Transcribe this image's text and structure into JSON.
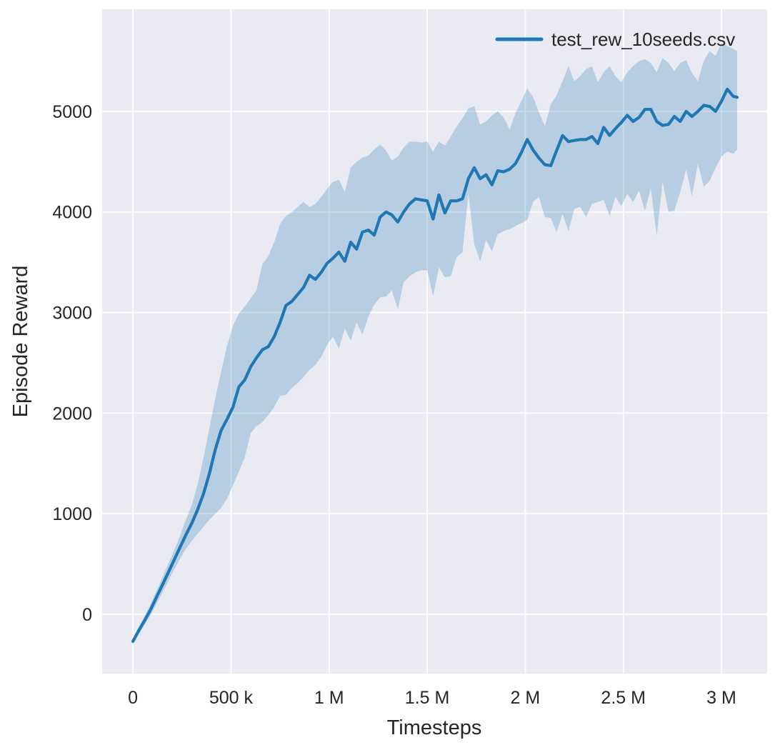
{
  "chart": {
    "xlabel": "Timesteps",
    "ylabel": "Episode Reward",
    "legend": {
      "label": "test_rew_10seeds.csv"
    },
    "colors": {
      "line": "#1f77b4",
      "band_fill": "#1f77b4",
      "band_opacity": 0.25,
      "axes_background": "#eaeaf2",
      "grid": "#ffffff",
      "text": "#262626",
      "figure_background": "#ffffff"
    },
    "x_ticks": [
      {
        "value": 0,
        "label": "0"
      },
      {
        "value": 500000,
        "label": "500 k"
      },
      {
        "value": 1000000,
        "label": "1 M"
      },
      {
        "value": 1500000,
        "label": "1.5 M"
      },
      {
        "value": 2000000,
        "label": "2 M"
      },
      {
        "value": 2500000,
        "label": "2.5 M"
      },
      {
        "value": 3000000,
        "label": "3 M"
      }
    ],
    "y_ticks": [
      {
        "value": 0,
        "label": "0"
      },
      {
        "value": 1000,
        "label": "1000"
      },
      {
        "value": 2000,
        "label": "2000"
      },
      {
        "value": 3000,
        "label": "3000"
      },
      {
        "value": 4000,
        "label": "4000"
      },
      {
        "value": 5000,
        "label": "5000"
      }
    ]
  },
  "chart_data": {
    "type": "line",
    "title": "",
    "xlabel": "Timesteps",
    "ylabel": "Episode Reward",
    "legend_position": "upper right",
    "grid": true,
    "band": "min-max / std envelope across 10 seeds",
    "xlim": [
      -157000,
      3233000
    ],
    "ylim": [
      -590,
      6015
    ],
    "series": [
      {
        "name": "test_rew_10seeds.csv",
        "x": [
          0,
          30000,
          60000,
          90000,
          120000,
          150000,
          180000,
          210000,
          240000,
          270000,
          300000,
          330000,
          360000,
          390000,
          420000,
          450000,
          480000,
          510000,
          540000,
          570000,
          600000,
          630000,
          660000,
          690000,
          720000,
          750000,
          780000,
          810000,
          840000,
          870000,
          900000,
          930000,
          960000,
          990000,
          1020000,
          1050000,
          1080000,
          1110000,
          1140000,
          1170000,
          1200000,
          1230000,
          1260000,
          1290000,
          1320000,
          1350000,
          1380000,
          1410000,
          1440000,
          1470000,
          1500000,
          1530000,
          1560000,
          1590000,
          1620000,
          1650000,
          1680000,
          1710000,
          1740000,
          1770000,
          1800000,
          1830000,
          1860000,
          1890000,
          1920000,
          1950000,
          1980000,
          2010000,
          2040000,
          2070000,
          2100000,
          2130000,
          2160000,
          2190000,
          2220000,
          2250000,
          2280000,
          2310000,
          2340000,
          2370000,
          2400000,
          2430000,
          2460000,
          2490000,
          2520000,
          2550000,
          2580000,
          2610000,
          2640000,
          2670000,
          2700000,
          2730000,
          2760000,
          2790000,
          2820000,
          2850000,
          2880000,
          2910000,
          2940000,
          2970000,
          3000000,
          3030000,
          3060000,
          3080000
        ],
        "mean": [
          -270,
          -160,
          -60,
          45,
          170,
          290,
          415,
          540,
          665,
          790,
          905,
          1040,
          1200,
          1400,
          1640,
          1830,
          1940,
          2060,
          2260,
          2330,
          2460,
          2550,
          2630,
          2660,
          2760,
          2900,
          3070,
          3110,
          3180,
          3250,
          3370,
          3330,
          3400,
          3490,
          3540,
          3600,
          3510,
          3700,
          3630,
          3800,
          3820,
          3770,
          3950,
          4000,
          3970,
          3900,
          4000,
          4080,
          4130,
          4120,
          4110,
          3930,
          4170,
          3990,
          4110,
          4110,
          4130,
          4330,
          4440,
          4330,
          4370,
          4270,
          4410,
          4400,
          4425,
          4480,
          4590,
          4720,
          4615,
          4535,
          4470,
          4460,
          4610,
          4760,
          4700,
          4710,
          4720,
          4720,
          4750,
          4680,
          4840,
          4760,
          4830,
          4890,
          4960,
          4900,
          4940,
          5020,
          5020,
          4900,
          4860,
          4870,
          4950,
          4900,
          5000,
          4950,
          5000,
          5060,
          5050,
          5000,
          5100,
          5220,
          5150,
          5140
        ],
        "lo": [
          -300,
          -195,
          -105,
          -10,
          105,
          215,
          330,
          445,
          550,
          650,
          730,
          800,
          870,
          940,
          1000,
          1060,
          1150,
          1280,
          1420,
          1560,
          1800,
          1870,
          1910,
          1980,
          2060,
          2170,
          2180,
          2250,
          2300,
          2360,
          2430,
          2480,
          2560,
          2680,
          2760,
          2640,
          2840,
          2720,
          2900,
          2780,
          2960,
          3080,
          3150,
          3160,
          3220,
          3030,
          3300,
          3360,
          3400,
          3420,
          3420,
          3160,
          3450,
          3350,
          3360,
          3550,
          3600,
          4180,
          3680,
          3510,
          3720,
          3610,
          3780,
          3810,
          3830,
          3860,
          3890,
          3920,
          4100,
          4150,
          3950,
          3940,
          3800,
          3980,
          3810,
          4030,
          4050,
          3950,
          4080,
          4100,
          4120,
          3960,
          4150,
          4060,
          4180,
          4100,
          4210,
          4010,
          4240,
          3760,
          4300,
          4000,
          4010,
          4200,
          4420,
          4160,
          4480,
          4250,
          4310,
          4440,
          4550,
          4600,
          4580,
          4620
        ],
        "hi": [
          -240,
          -125,
          -15,
          100,
          235,
          365,
          500,
          635,
          780,
          940,
          1090,
          1290,
          1560,
          1850,
          2150,
          2420,
          2670,
          2870,
          2990,
          3060,
          3140,
          3220,
          3480,
          3560,
          3700,
          3880,
          3960,
          4000,
          4050,
          4100,
          4050,
          4080,
          4150,
          4230,
          4300,
          4320,
          4200,
          4440,
          4500,
          4540,
          4560,
          4620,
          4670,
          4610,
          4510,
          4550,
          4640,
          4700,
          4700,
          4690,
          4700,
          4600,
          4700,
          4660,
          4750,
          4850,
          4930,
          5030,
          5050,
          4870,
          4900,
          4960,
          5000,
          4940,
          4820,
          4980,
          5100,
          5230,
          5140,
          4990,
          4850,
          5070,
          5160,
          5300,
          5450,
          5300,
          5350,
          5420,
          5450,
          5290,
          5390,
          5450,
          5350,
          5290,
          5390,
          5450,
          5500,
          5520,
          5480,
          5390,
          5530,
          5480,
          5400,
          5480,
          5510,
          5380,
          5300,
          5500,
          5600,
          5550,
          5680,
          5650,
          5620,
          5600
        ]
      }
    ]
  }
}
